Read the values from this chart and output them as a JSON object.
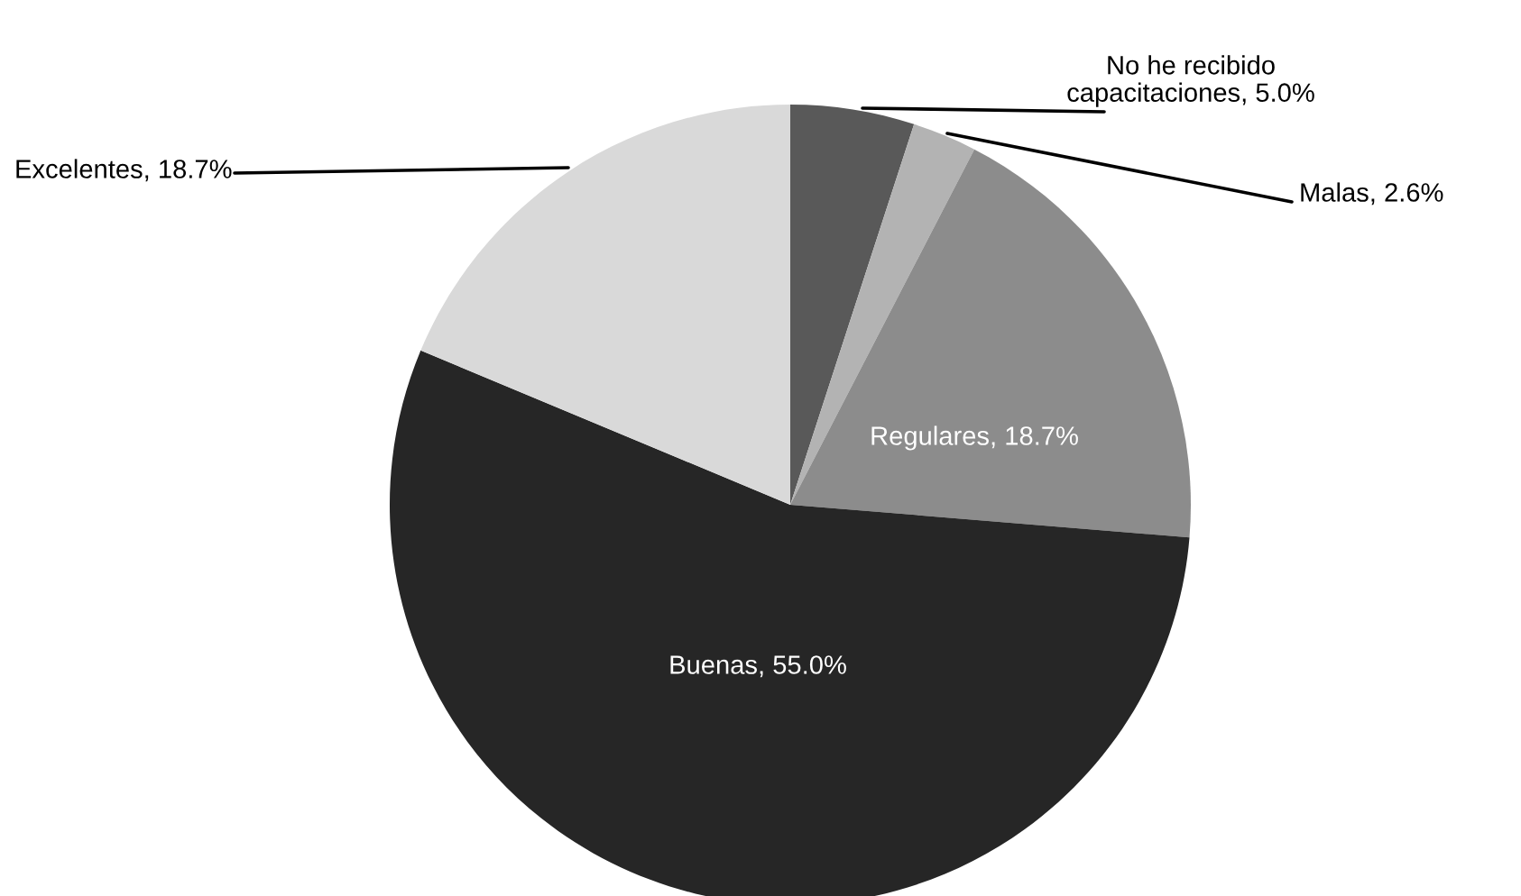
{
  "chart_data": {
    "type": "pie",
    "categories": [
      "No he recibido capacitaciones",
      "Malas",
      "Regulares",
      "Buenas",
      "Excelentes"
    ],
    "values": [
      5.0,
      2.6,
      18.7,
      55.0,
      18.7
    ],
    "value_labels": [
      "5.0%",
      "2.6%",
      "18.7%",
      "55.0%",
      "18.7%"
    ],
    "colors": [
      "#595959",
      "#b3b3b3",
      "#8c8c8c",
      "#262626",
      "#d9d9d9"
    ]
  }
}
